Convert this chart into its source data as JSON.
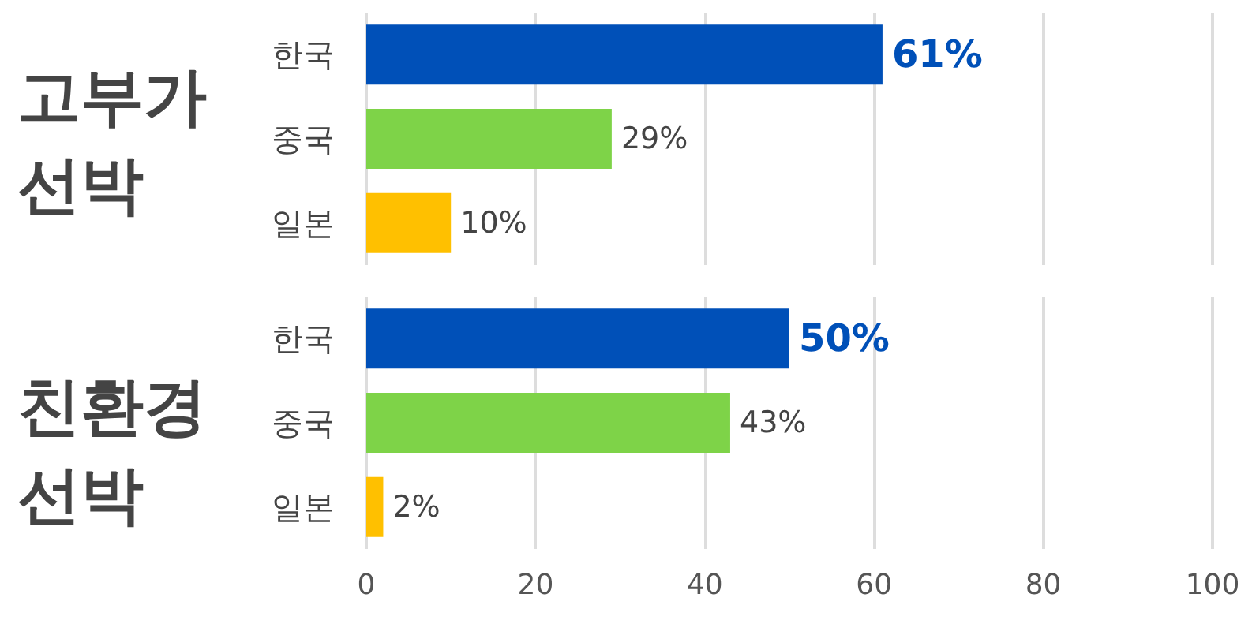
{
  "chart_data": [
    {
      "type": "bar",
      "orientation": "horizontal",
      "title": "고부가 선박",
      "categories": [
        "한국",
        "중국",
        "일본"
      ],
      "values": [
        61,
        29,
        10
      ],
      "colors": [
        "#0050b8",
        "#7ed348",
        "#ffc000"
      ],
      "value_labels": [
        "61%",
        "29%",
        "10%"
      ],
      "xlim": [
        0,
        100
      ],
      "xticks": [
        0,
        20,
        40,
        60,
        80,
        100
      ],
      "grid": "x",
      "tick_labels": "y"
    },
    {
      "type": "bar",
      "orientation": "horizontal",
      "title": "친환경 선박",
      "categories": [
        "한국",
        "중국",
        "일본"
      ],
      "values": [
        50,
        43,
        2
      ],
      "colors": [
        "#0050b8",
        "#7ed348",
        "#ffc000"
      ],
      "value_labels": [
        "50%",
        "43%",
        "2%"
      ],
      "xlim": [
        0,
        100
      ],
      "xticks": [
        0,
        20,
        40,
        60,
        80,
        100
      ],
      "grid": "x"
    }
  ]
}
